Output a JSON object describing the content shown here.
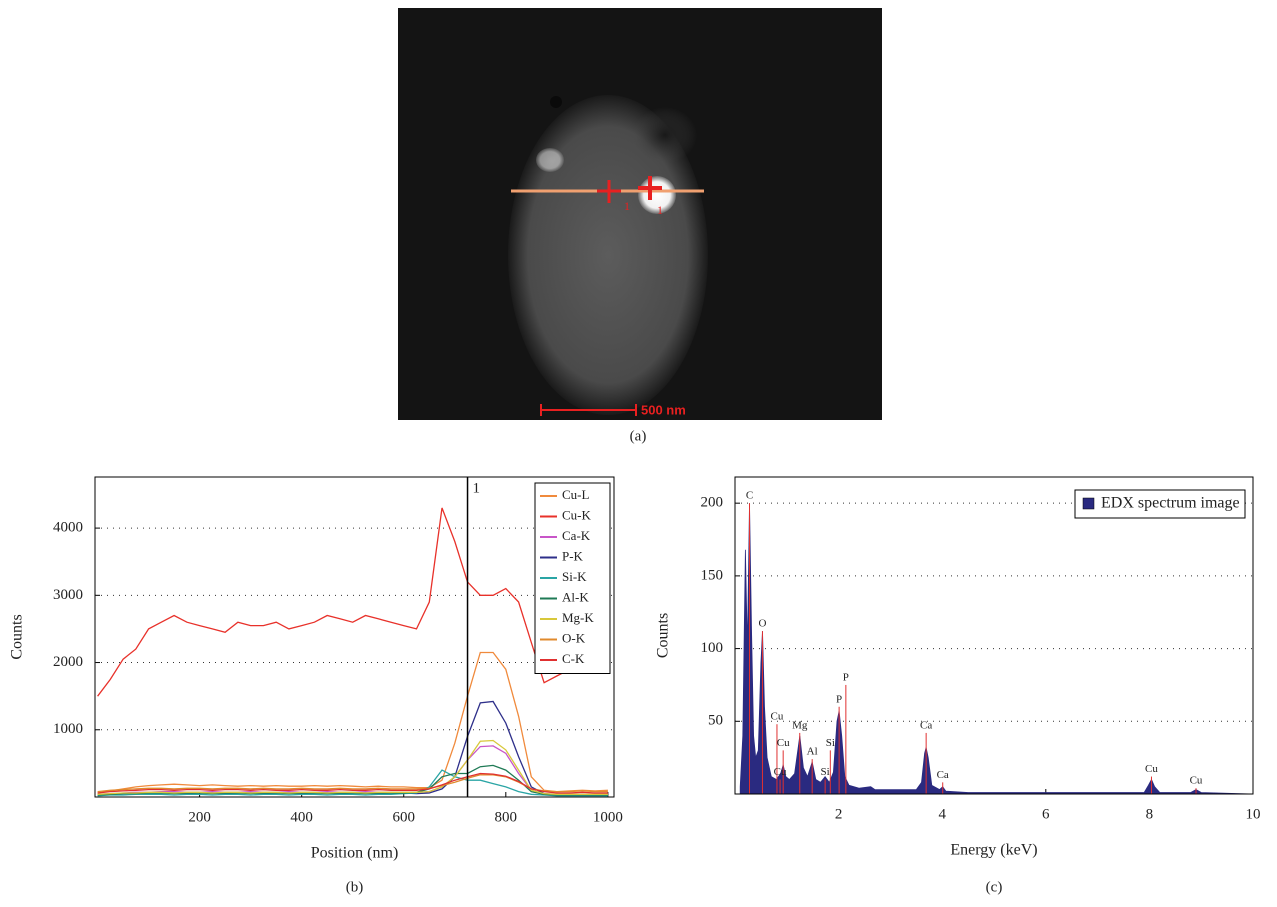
{
  "image": {
    "caption": "(a)",
    "markers": [
      "1",
      "1"
    ],
    "scale_bar": "500 nm"
  },
  "chart_data": [
    {
      "type": "line",
      "caption": "(b)",
      "x_label": "Position (nm)",
      "y_label": "Counts",
      "x": [
        0,
        25,
        50,
        75,
        100,
        125,
        150,
        175,
        200,
        225,
        250,
        275,
        300,
        325,
        350,
        375,
        400,
        425,
        450,
        475,
        500,
        525,
        550,
        575,
        600,
        625,
        650,
        675,
        700,
        725,
        750,
        775,
        800,
        825,
        850,
        875,
        900,
        925,
        950,
        975,
        1000
      ],
      "xlim": [
        -5,
        1012
      ],
      "ylim": [
        0,
        4760
      ],
      "xticks": [
        200,
        400,
        600,
        800,
        1000
      ],
      "yticks": [
        1000,
        2000,
        3000,
        4000
      ],
      "grid": true,
      "legend": "upper right",
      "markers": [
        {
          "x": 725,
          "label": "1"
        }
      ],
      "series": [
        {
          "name": "Cu-L",
          "color": "#f08a3c",
          "values": [
            60,
            90,
            120,
            150,
            170,
            180,
            190,
            180,
            170,
            180,
            170,
            160,
            170,
            160,
            170,
            160,
            160,
            170,
            160,
            170,
            160,
            150,
            160,
            150,
            150,
            140,
            140,
            250,
            800,
            1500,
            2150,
            2150,
            1900,
            1200,
            300,
            100,
            80,
            90,
            100,
            90,
            100
          ]
        },
        {
          "name": "Cu-K",
          "color": "#e8312a",
          "values": [
            1500,
            1750,
            2050,
            2200,
            2500,
            2600,
            2700,
            2600,
            2550,
            2500,
            2450,
            2600,
            2550,
            2550,
            2600,
            2500,
            2550,
            2600,
            2700,
            2650,
            2600,
            2700,
            2650,
            2600,
            2550,
            2500,
            2900,
            4300,
            3800,
            3200,
            3000,
            3000,
            3100,
            2900,
            2300,
            1700,
            1800,
            1900,
            2100,
            2100,
            2000
          ]
        },
        {
          "name": "Ca-K",
          "color": "#c855c8",
          "values": [
            40,
            50,
            60,
            70,
            70,
            80,
            80,
            70,
            70,
            80,
            70,
            70,
            80,
            70,
            70,
            80,
            70,
            70,
            80,
            70,
            70,
            80,
            70,
            70,
            70,
            70,
            80,
            150,
            300,
            550,
            750,
            760,
            650,
            350,
            100,
            50,
            40,
            40,
            40,
            40,
            40
          ]
        },
        {
          "name": "P-K",
          "color": "#2e2f8a",
          "values": [
            30,
            40,
            50,
            50,
            60,
            60,
            60,
            50,
            60,
            60,
            50,
            60,
            60,
            50,
            60,
            60,
            50,
            60,
            60,
            50,
            60,
            60,
            50,
            60,
            60,
            50,
            60,
            120,
            300,
            900,
            1400,
            1420,
            1100,
            600,
            150,
            50,
            30,
            30,
            30,
            30,
            30
          ]
        },
        {
          "name": "Si-K",
          "color": "#2aa5a5",
          "values": [
            20,
            30,
            30,
            40,
            40,
            40,
            30,
            40,
            40,
            30,
            40,
            40,
            30,
            40,
            40,
            30,
            40,
            40,
            30,
            40,
            40,
            30,
            40,
            40,
            50,
            60,
            150,
            400,
            300,
            250,
            250,
            200,
            150,
            80,
            40,
            30,
            20,
            20,
            20,
            20,
            20
          ]
        },
        {
          "name": "Al-K",
          "color": "#1f7a55",
          "values": [
            30,
            40,
            50,
            50,
            60,
            60,
            50,
            60,
            60,
            50,
            60,
            60,
            50,
            60,
            60,
            50,
            60,
            60,
            50,
            60,
            60,
            50,
            60,
            60,
            60,
            70,
            120,
            300,
            350,
            350,
            450,
            470,
            400,
            250,
            80,
            40,
            30,
            30,
            30,
            30,
            30
          ]
        },
        {
          "name": "Mg-K",
          "color": "#d8c83a",
          "values": [
            40,
            50,
            60,
            60,
            70,
            70,
            60,
            70,
            70,
            60,
            70,
            70,
            60,
            70,
            70,
            60,
            70,
            70,
            60,
            70,
            70,
            60,
            70,
            70,
            70,
            70,
            80,
            150,
            300,
            550,
            830,
            840,
            700,
            400,
            100,
            50,
            40,
            40,
            40,
            40,
            40
          ]
        },
        {
          "name": "O-K",
          "color": "#e08a2c",
          "values": [
            80,
            100,
            110,
            120,
            130,
            130,
            120,
            130,
            130,
            120,
            130,
            130,
            120,
            130,
            120,
            120,
            130,
            120,
            120,
            130,
            120,
            120,
            130,
            120,
            120,
            120,
            130,
            170,
            220,
            280,
            330,
            330,
            300,
            220,
            120,
            90,
            80,
            80,
            90,
            80,
            80
          ]
        },
        {
          "name": "C-K",
          "color": "#e03030",
          "values": [
            60,
            80,
            90,
            100,
            110,
            110,
            100,
            110,
            110,
            100,
            110,
            110,
            100,
            110,
            100,
            100,
            110,
            100,
            100,
            110,
            100,
            100,
            110,
            100,
            100,
            100,
            120,
            180,
            250,
            300,
            350,
            340,
            310,
            230,
            120,
            80,
            60,
            60,
            70,
            60,
            60
          ]
        }
      ]
    },
    {
      "type": "area",
      "caption": "(c)",
      "x_label": "Energy (keV)",
      "y_label": "Counts",
      "x": [
        0.1,
        0.15,
        0.2,
        0.24,
        0.28,
        0.32,
        0.36,
        0.4,
        0.45,
        0.5,
        0.53,
        0.57,
        0.62,
        0.7,
        0.8,
        0.88,
        0.93,
        0.98,
        1.05,
        1.15,
        1.25,
        1.32,
        1.4,
        1.49,
        1.56,
        1.65,
        1.74,
        1.82,
        1.9,
        1.97,
        2.01,
        2.06,
        2.12,
        2.2,
        2.4,
        2.62,
        2.7,
        3.0,
        3.3,
        3.5,
        3.6,
        3.66,
        3.69,
        3.73,
        3.8,
        3.95,
        4.01,
        4.07,
        4.5,
        5.0,
        6.0,
        7.0,
        7.9,
        7.98,
        8.04,
        8.1,
        8.2,
        8.8,
        8.9,
        9.0,
        10.0
      ],
      "xlim": [
        0,
        10
      ],
      "ylim": [
        0,
        218
      ],
      "xticks": [
        2,
        4,
        6,
        8,
        10
      ],
      "yticks": [
        50,
        100,
        150,
        200
      ],
      "grid": true,
      "legend": "upper right",
      "series": [
        {
          "name": "EDX spectrum image",
          "color": "#2a2a80",
          "values": [
            5,
            40,
            168,
            100,
            200,
            110,
            40,
            25,
            30,
            90,
            112,
            60,
            25,
            12,
            10,
            14,
            20,
            12,
            10,
            14,
            40,
            18,
            12,
            22,
            10,
            8,
            12,
            8,
            15,
            50,
            57,
            40,
            12,
            6,
            4,
            5,
            3,
            3,
            3,
            3,
            8,
            28,
            32,
            25,
            6,
            3,
            5,
            2,
            1,
            1,
            1,
            1,
            1,
            6,
            10,
            5,
            1,
            1,
            3,
            1,
            0
          ]
        }
      ],
      "peak_color": "#e03030",
      "peak_labels": [
        {
          "x": 0.28,
          "height": 200,
          "label": "C"
        },
        {
          "x": 0.53,
          "height": 112,
          "label": "O"
        },
        {
          "x": 0.81,
          "height": 48,
          "label": "Cu"
        },
        {
          "x": 0.93,
          "height": 30,
          "label": "Cu"
        },
        {
          "x": 0.87,
          "height": 10,
          "label": "Cu"
        },
        {
          "x": 1.25,
          "height": 42,
          "label": "Mg"
        },
        {
          "x": 1.49,
          "height": 24,
          "label": "Al"
        },
        {
          "x": 1.74,
          "height": 10,
          "label": "Si"
        },
        {
          "x": 1.84,
          "height": 30,
          "label": "Si"
        },
        {
          "x": 2.01,
          "height": 60,
          "label": "P"
        },
        {
          "x": 2.14,
          "height": 75,
          "label": "P"
        },
        {
          "x": 3.69,
          "height": 42,
          "label": "Ca"
        },
        {
          "x": 4.01,
          "height": 8,
          "label": "Ca"
        },
        {
          "x": 8.04,
          "height": 12,
          "label": "Cu"
        },
        {
          "x": 8.9,
          "height": 4,
          "label": "Cu"
        }
      ]
    }
  ]
}
